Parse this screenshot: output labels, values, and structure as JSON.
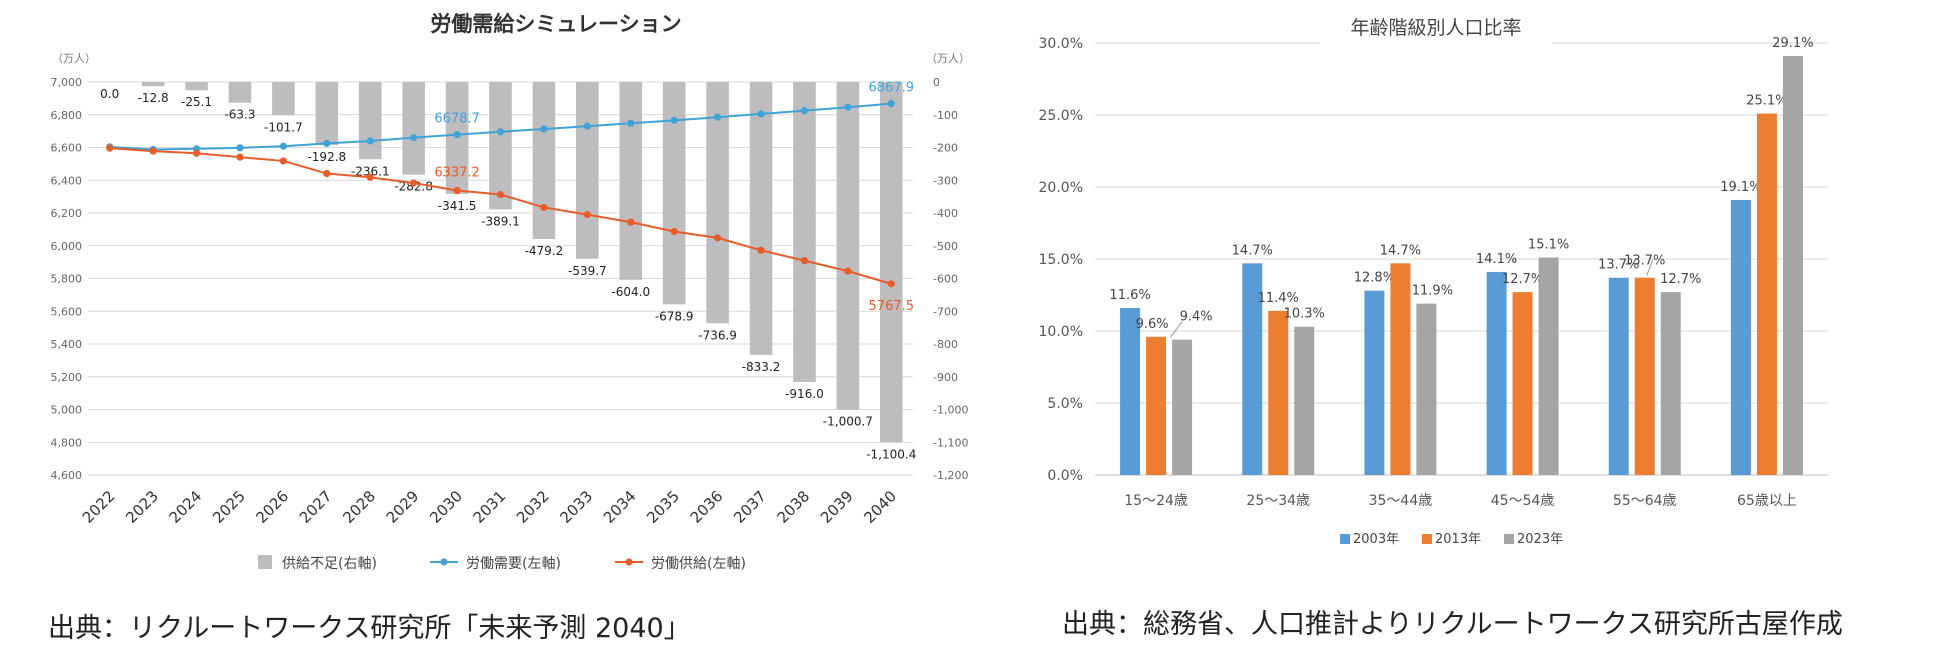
{
  "chart_data": [
    {
      "type": "bar+line",
      "title": "労働需給シミュレーション",
      "left_axis_unit": "（万人）",
      "right_axis_unit": "（万人）",
      "left_ylim": [
        4600,
        7000
      ],
      "right_ylim": [
        -1200,
        0
      ],
      "left_ticks": [
        "7,000",
        "6,800",
        "6,600",
        "6,400",
        "6,200",
        "6,000",
        "5,800",
        "5,600",
        "5,400",
        "5,200",
        "5,000",
        "4,800",
        "4,600"
      ],
      "left_tick_values": [
        7000,
        6800,
        6600,
        6400,
        6200,
        6000,
        5800,
        5600,
        5400,
        5200,
        5000,
        4800,
        4600
      ],
      "right_ticks": [
        "0",
        "-100",
        "-200",
        "-300",
        "-400",
        "-500",
        "-600",
        "-700",
        "-800",
        "-900",
        "-1,000",
        "-1,100",
        "-1,200"
      ],
      "right_tick_values": [
        0,
        -100,
        -200,
        -300,
        -400,
        -500,
        -600,
        -700,
        -800,
        -900,
        -1000,
        -1100,
        -1200
      ],
      "categories": [
        "2022",
        "2023",
        "2024",
        "2025",
        "2026",
        "2027",
        "2028",
        "2029",
        "2030",
        "2031",
        "2032",
        "2033",
        "2034",
        "2035",
        "2036",
        "2037",
        "2038",
        "2039",
        "2040"
      ],
      "shortage": [
        0,
        -12.8,
        -25.1,
        -63.3,
        -101.7,
        -192.8,
        -236.1,
        -282.8,
        -341.5,
        -389.1,
        -479.2,
        -539.7,
        -604.0,
        -678.9,
        -736.9,
        -833.2,
        -916.0,
        -1000.7,
        -1100.4
      ],
      "shortage_labels": [
        "0.0",
        "-12.8",
        "-25.1",
        "-63.3",
        "-101.7",
        "-192.8",
        "-236.1",
        "-282.8",
        "-341.5",
        "-389.1",
        "-479.2",
        "-539.7",
        "-604.0",
        "-678.9",
        "-736.9",
        "-833.2",
        "-916.0",
        "-1,000.7",
        "-1,100.4"
      ],
      "demand": [
        6604,
        6588,
        6592,
        6598,
        6608,
        6625,
        6640,
        6660,
        6678.7,
        6696,
        6713,
        6730,
        6748,
        6766,
        6785,
        6805,
        6825,
        6846,
        6867.9
      ],
      "supply": [
        6596,
        6578,
        6565,
        6541,
        6518,
        6441,
        6418,
        6383,
        6337.2,
        6313,
        6234,
        6190,
        6144,
        6087,
        6048,
        5972,
        5909,
        5845,
        5767.5
      ],
      "annotations": [
        {
          "series": "demand",
          "index": 8,
          "label": "6678.7"
        },
        {
          "series": "demand",
          "index": 18,
          "label": "6867.9"
        },
        {
          "series": "supply",
          "index": 8,
          "label": "6337.2"
        },
        {
          "series": "supply",
          "index": 18,
          "label": "5767.5"
        }
      ],
      "legend": [
        "供給不足(右軸)",
        "労働需要(左軸)",
        "労働供給(左軸)"
      ],
      "colors": {
        "bar": "#bdbdbf",
        "demand": "#3fa3d6",
        "supply": "#e65d2a",
        "demand_text": "#3fa3d6",
        "supply_text": "#e65d2a"
      }
    },
    {
      "type": "bar",
      "title": "年齢階級別人口比率",
      "categories": [
        "15～24歳",
        "25～34歳",
        "35～44歳",
        "45～54歳",
        "55～64歳",
        "65歳以上"
      ],
      "ylim": [
        0,
        30
      ],
      "ticks": [
        "0.0%",
        "5.0%",
        "10.0%",
        "15.0%",
        "20.0%",
        "25.0%",
        "30.0%"
      ],
      "tick_values": [
        0,
        5,
        10,
        15,
        20,
        25,
        30
      ],
      "series": [
        {
          "name": "2003年",
          "color": "#5b9bd5",
          "values": [
            11.6,
            14.7,
            12.8,
            14.1,
            13.7,
            19.1
          ],
          "labels": [
            "11.6%",
            "14.7%",
            "12.8%",
            "14.1%",
            "13.7%",
            "19.1%"
          ]
        },
        {
          "name": "2013年",
          "color": "#ed7d31",
          "values": [
            9.6,
            11.4,
            14.7,
            12.7,
            13.7,
            25.1
          ],
          "labels": [
            "9.6%",
            "11.4%",
            "14.7%",
            "12.7%",
            "13.7%",
            "25.1%"
          ]
        },
        {
          "name": "2023年",
          "color": "#a5a5a5",
          "values": [
            9.4,
            10.3,
            11.9,
            15.1,
            12.7,
            29.1
          ],
          "labels": [
            "9.4%",
            "10.3%",
            "11.9%",
            "15.1%",
            "12.7%",
            "29.1%"
          ]
        }
      ]
    }
  ],
  "sources": {
    "left": "出典：リクルートワークス研究所「未来予測 2040」",
    "right": "出典：総務省、人口推計よりリクルートワークス研究所古屋作成"
  }
}
